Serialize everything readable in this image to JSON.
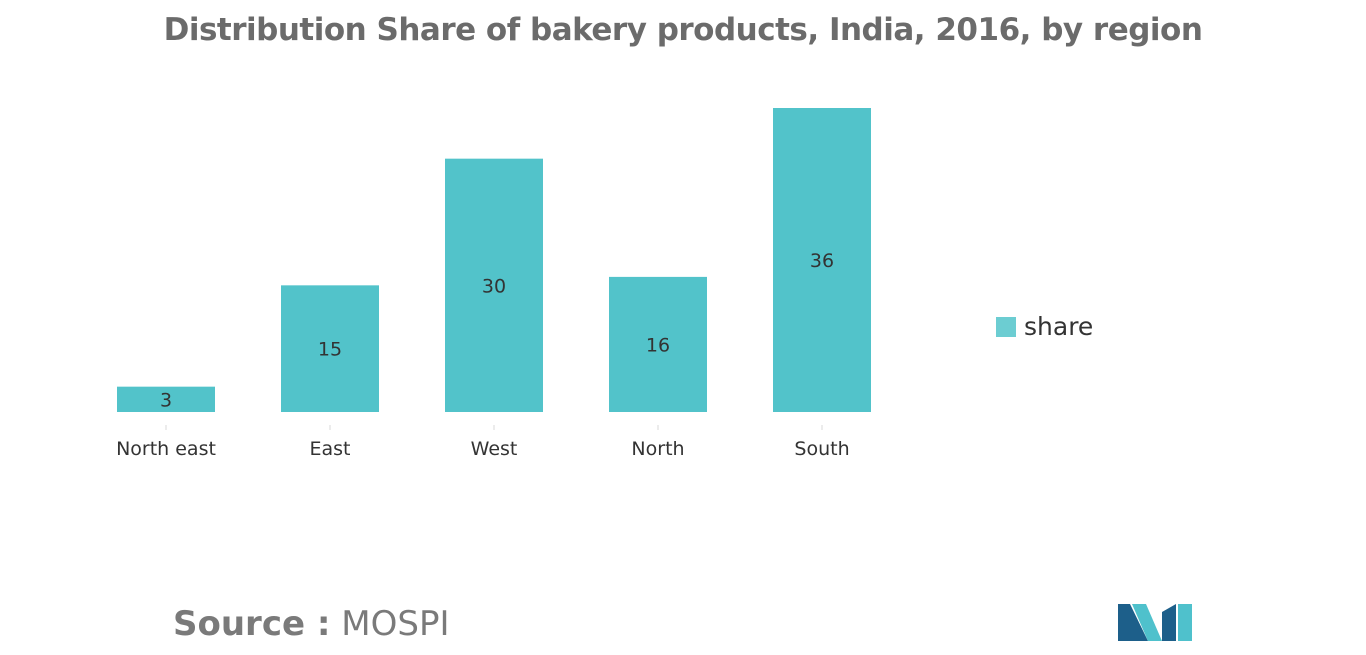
{
  "colors": {
    "bar": "#52c3ca",
    "legend_swatch": "#6ccdd2",
    "title": "#6b6b6b",
    "axis_text": "#333333",
    "source": "#7a7a7a",
    "logo_dark": "#1d5f8a",
    "logo_light": "#4fc1cc"
  },
  "chart_data": {
    "type": "bar",
    "title": "Distribution Share of bakery products, India, 2016, by region",
    "categories": [
      "North east",
      "East",
      "West",
      "North",
      "South"
    ],
    "series": [
      {
        "name": "share",
        "values": [
          3,
          15,
          30,
          16,
          36
        ]
      }
    ],
    "ylim": [
      0,
      36
    ],
    "grid": false,
    "legend_position": "right"
  },
  "source": {
    "label": "Source :",
    "value": "MOSPI"
  },
  "logo": {
    "icon": "mordor-intelligence-logo-icon"
  }
}
